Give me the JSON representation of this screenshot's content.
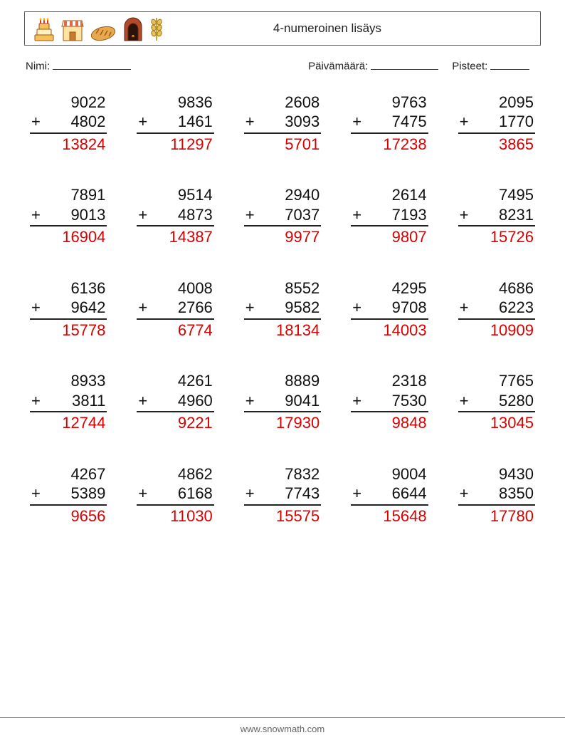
{
  "header": {
    "title": "4-numeroinen lisäys",
    "icons": [
      "cake-icon",
      "bakery-shop-icon",
      "bread-loaf-icon",
      "bread-oven-icon",
      "wheat-icon"
    ]
  },
  "labels": {
    "name": "Nimi:",
    "date": "Päivämäärä:",
    "score": "Pisteet:"
  },
  "style": {
    "answer_color": "#d90000",
    "text_color": "#111111",
    "rule_color": "#222222",
    "font_size_problem": 22,
    "columns": 5,
    "rows": 5,
    "operation": "+"
  },
  "problems": [
    {
      "a": 9022,
      "b": 4802,
      "ans": 13824
    },
    {
      "a": 9836,
      "b": 1461,
      "ans": 11297
    },
    {
      "a": 2608,
      "b": 3093,
      "ans": 5701
    },
    {
      "a": 9763,
      "b": 7475,
      "ans": 17238
    },
    {
      "a": 2095,
      "b": 1770,
      "ans": 3865
    },
    {
      "a": 7891,
      "b": 9013,
      "ans": 16904
    },
    {
      "a": 9514,
      "b": 4873,
      "ans": 14387
    },
    {
      "a": 2940,
      "b": 7037,
      "ans": 9977
    },
    {
      "a": 2614,
      "b": 7193,
      "ans": 9807
    },
    {
      "a": 7495,
      "b": 8231,
      "ans": 15726
    },
    {
      "a": 6136,
      "b": 9642,
      "ans": 15778
    },
    {
      "a": 4008,
      "b": 2766,
      "ans": 6774
    },
    {
      "a": 8552,
      "b": 9582,
      "ans": 18134
    },
    {
      "a": 4295,
      "b": 9708,
      "ans": 14003
    },
    {
      "a": 4686,
      "b": 6223,
      "ans": 10909
    },
    {
      "a": 8933,
      "b": 3811,
      "ans": 12744
    },
    {
      "a": 4261,
      "b": 4960,
      "ans": 9221
    },
    {
      "a": 8889,
      "b": 9041,
      "ans": 17930
    },
    {
      "a": 2318,
      "b": 7530,
      "ans": 9848
    },
    {
      "a": 7765,
      "b": 5280,
      "ans": 13045
    },
    {
      "a": 4267,
      "b": 5389,
      "ans": 9656
    },
    {
      "a": 4862,
      "b": 6168,
      "ans": 11030
    },
    {
      "a": 7832,
      "b": 7743,
      "ans": 15575
    },
    {
      "a": 9004,
      "b": 6644,
      "ans": 15648
    },
    {
      "a": 9430,
      "b": 8350,
      "ans": 17780
    }
  ],
  "footer": {
    "url": "www.snowmath.com"
  }
}
